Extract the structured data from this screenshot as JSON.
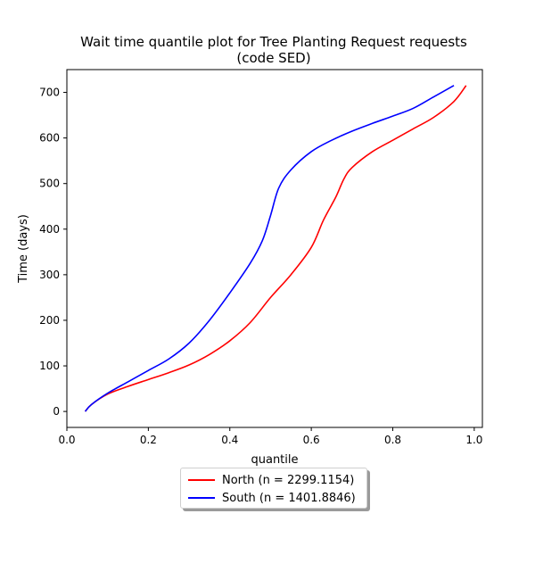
{
  "chart_data": {
    "type": "line",
    "title": "Wait time quantile plot for Tree Planting Request  requests",
    "subtitle": "(code SED)",
    "xlabel": "quantile",
    "ylabel": "Time (days)",
    "xlim": [
      0.0,
      1.02
    ],
    "ylim": [
      -35,
      750
    ],
    "xticks": [
      0.0,
      0.2,
      0.4,
      0.6,
      0.8,
      1.0
    ],
    "xtick_labels": [
      "0.0",
      "0.2",
      "0.4",
      "0.6",
      "0.8",
      "1.0"
    ],
    "yticks": [
      0,
      100,
      200,
      300,
      400,
      500,
      600,
      700
    ],
    "ytick_labels": [
      "0",
      "100",
      "200",
      "300",
      "400",
      "500",
      "600",
      "700"
    ],
    "grid": false,
    "legend_position": "below",
    "series": [
      {
        "name": "North (n = 2299.1154)",
        "color": "#ff0000",
        "x": [
          0.045,
          0.06,
          0.1,
          0.15,
          0.2,
          0.25,
          0.3,
          0.35,
          0.4,
          0.45,
          0.5,
          0.55,
          0.6,
          0.63,
          0.66,
          0.68,
          0.7,
          0.75,
          0.8,
          0.85,
          0.9,
          0.95,
          0.98
        ],
        "y": [
          0,
          15,
          38,
          55,
          70,
          85,
          102,
          125,
          155,
          195,
          250,
          300,
          360,
          420,
          470,
          510,
          535,
          570,
          595,
          620,
          645,
          680,
          715
        ]
      },
      {
        "name": "South (n = 1401.8846)",
        "color": "#0000ff",
        "x": [
          0.045,
          0.06,
          0.1,
          0.15,
          0.2,
          0.25,
          0.3,
          0.35,
          0.4,
          0.45,
          0.48,
          0.5,
          0.52,
          0.55,
          0.6,
          0.65,
          0.7,
          0.75,
          0.8,
          0.85,
          0.9,
          0.95
        ],
        "y": [
          0,
          15,
          40,
          65,
          90,
          115,
          150,
          200,
          260,
          325,
          375,
          430,
          490,
          530,
          570,
          595,
          615,
          632,
          648,
          665,
          690,
          715
        ]
      }
    ]
  }
}
